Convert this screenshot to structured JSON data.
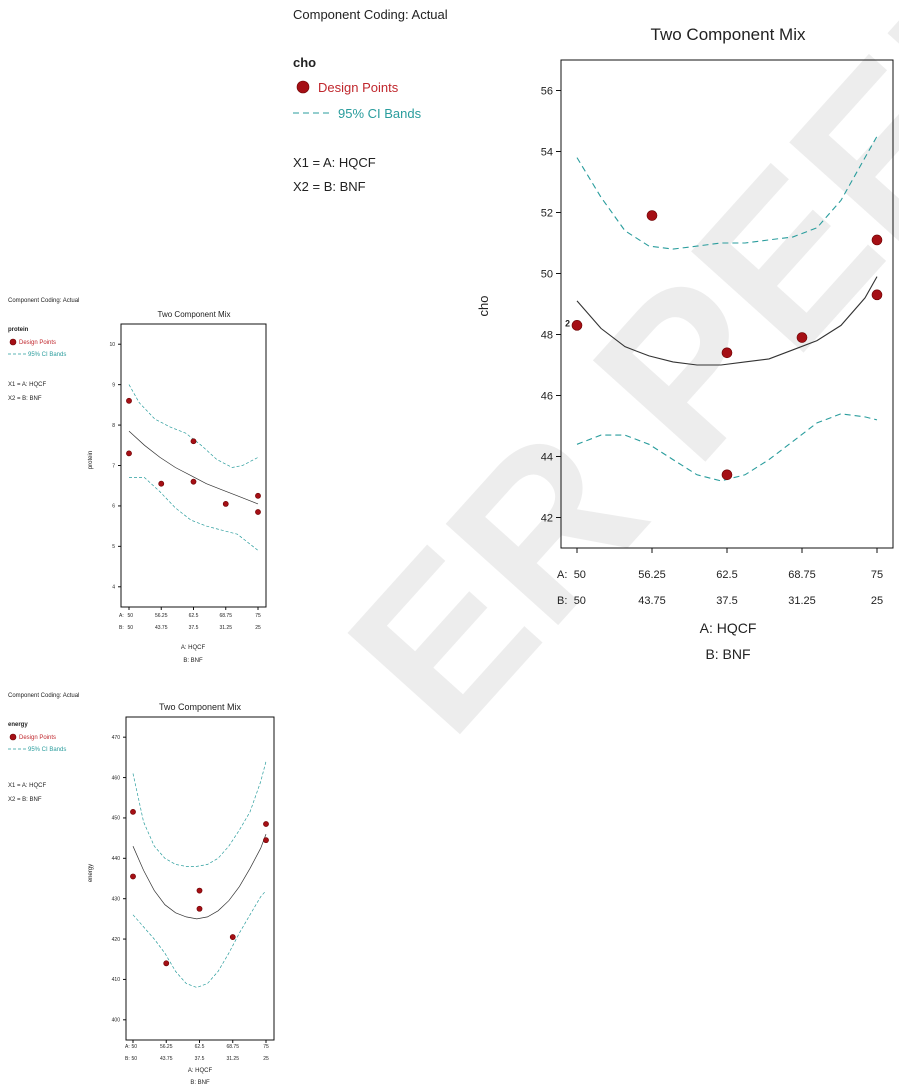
{
  "watermark": "ER PEER",
  "chart_data": [
    {
      "id": "cho",
      "type": "line",
      "title": "Two Component Mix",
      "coding_label": "Component Coding: Actual",
      "legend_title": "cho",
      "legend_points": "Design Points",
      "legend_ci": "95% CI Bands",
      "x1_label": "X1 = A: HQCF",
      "x2_label": "X2 = B: BNF",
      "ylabel": "cho",
      "xlabel_a": "A: HQCF",
      "xlabel_b": "B: BNF",
      "row_a_prefix": "A:",
      "row_b_prefix": "B:",
      "x_a_ticks": [
        "50",
        "56.25",
        "62.5",
        "68.75",
        "75"
      ],
      "x_b_ticks": [
        "50",
        "43.75",
        "37.5",
        "31.25",
        "25"
      ],
      "ylim": [
        41,
        57
      ],
      "y_ticks": [
        "42",
        "44",
        "46",
        "48",
        "50",
        "52",
        "54",
        "56"
      ],
      "points": [
        {
          "x": 50,
          "y": 48.3,
          "label": "2"
        },
        {
          "x": 56.25,
          "y": 51.9
        },
        {
          "x": 62.5,
          "y": 47.4
        },
        {
          "x": 62.5,
          "y": 43.4
        },
        {
          "x": 68.75,
          "y": 47.9
        },
        {
          "x": 75,
          "y": 51.1
        },
        {
          "x": 75,
          "y": 49.3
        }
      ],
      "fit": [
        [
          50,
          49.1
        ],
        [
          52,
          48.2
        ],
        [
          54,
          47.6
        ],
        [
          56,
          47.3
        ],
        [
          58,
          47.1
        ],
        [
          60,
          47.0
        ],
        [
          62,
          47.0
        ],
        [
          64,
          47.1
        ],
        [
          66,
          47.2
        ],
        [
          68,
          47.5
        ],
        [
          70,
          47.8
        ],
        [
          72,
          48.3
        ],
        [
          74,
          49.2
        ],
        [
          75,
          49.9
        ]
      ],
      "ci_upper": [
        [
          50,
          53.8
        ],
        [
          52,
          52.5
        ],
        [
          54,
          51.4
        ],
        [
          56,
          50.9
        ],
        [
          58,
          50.8
        ],
        [
          60,
          50.9
        ],
        [
          62,
          51.0
        ],
        [
          64,
          51.0
        ],
        [
          66,
          51.1
        ],
        [
          68,
          51.2
        ],
        [
          70,
          51.5
        ],
        [
          72,
          52.4
        ],
        [
          74,
          53.8
        ],
        [
          75,
          54.5
        ]
      ],
      "ci_lower": [
        [
          50,
          44.4
        ],
        [
          52,
          44.7
        ],
        [
          54,
          44.7
        ],
        [
          56,
          44.4
        ],
        [
          58,
          43.9
        ],
        [
          60,
          43.4
        ],
        [
          62,
          43.2
        ],
        [
          64,
          43.4
        ],
        [
          66,
          43.9
        ],
        [
          68,
          44.5
        ],
        [
          70,
          45.1
        ],
        [
          72,
          45.4
        ],
        [
          74,
          45.3
        ],
        [
          75,
          45.2
        ]
      ]
    },
    {
      "id": "protein",
      "type": "line",
      "title": "Two Component Mix",
      "coding_label": "Component Coding: Actual",
      "legend_title": "protein",
      "legend_points": "Design Points",
      "legend_ci": "95% CI Bands",
      "x1_label": "X1 = A: HQCF",
      "x2_label": "X2 = B: BNF",
      "ylabel": "protein",
      "xlabel_a": "A: HQCF",
      "xlabel_b": "B: BNF",
      "row_a_prefix": "A:",
      "row_b_prefix": "B:",
      "x_a_ticks": [
        "50",
        "56.25",
        "62.5",
        "68.75",
        "75"
      ],
      "x_b_ticks": [
        "50",
        "43.75",
        "37.5",
        "31.25",
        "25"
      ],
      "ylim": [
        3.5,
        10.5
      ],
      "y_ticks": [
        "4",
        "5",
        "6",
        "7",
        "8",
        "9",
        "10"
      ],
      "points": [
        {
          "x": 50,
          "y": 8.6
        },
        {
          "x": 50,
          "y": 7.3
        },
        {
          "x": 56.25,
          "y": 6.55
        },
        {
          "x": 62.5,
          "y": 7.6
        },
        {
          "x": 62.5,
          "y": 6.6
        },
        {
          "x": 68.75,
          "y": 6.05
        },
        {
          "x": 75,
          "y": 6.25
        },
        {
          "x": 75,
          "y": 5.85
        }
      ],
      "fit": [
        [
          50,
          7.85
        ],
        [
          53,
          7.5
        ],
        [
          56,
          7.2
        ],
        [
          59,
          6.95
        ],
        [
          62,
          6.75
        ],
        [
          65,
          6.55
        ],
        [
          68,
          6.4
        ],
        [
          71,
          6.25
        ],
        [
          75,
          6.05
        ]
      ],
      "ci_upper": [
        [
          50,
          9.0
        ],
        [
          52,
          8.55
        ],
        [
          55,
          8.15
        ],
        [
          58,
          7.95
        ],
        [
          61,
          7.8
        ],
        [
          64,
          7.5
        ],
        [
          67,
          7.15
        ],
        [
          70,
          6.95
        ],
        [
          72,
          7.0
        ],
        [
          75,
          7.2
        ]
      ],
      "ci_lower": [
        [
          50,
          6.7
        ],
        [
          53,
          6.7
        ],
        [
          56,
          6.35
        ],
        [
          59,
          5.95
        ],
        [
          62,
          5.65
        ],
        [
          65,
          5.5
        ],
        [
          68,
          5.4
        ],
        [
          71,
          5.3
        ],
        [
          73,
          5.1
        ],
        [
          75,
          4.9
        ]
      ]
    },
    {
      "id": "energy",
      "type": "line",
      "title": "Two Component Mix",
      "coding_label": "Component Coding: Actual",
      "legend_title": "energy",
      "legend_points": "Design Points",
      "legend_ci": "95% CI Bands",
      "x1_label": "X1 = A: HQCF",
      "x2_label": "X2 = B: BNF",
      "ylabel": "energy",
      "xlabel_a": "A: HQCF",
      "xlabel_b": "B: BNF",
      "row_a_prefix": "A:",
      "row_b_prefix": "B:",
      "x_a_ticks": [
        "50",
        "56.25",
        "62.5",
        "68.75",
        "75"
      ],
      "x_b_ticks": [
        "50",
        "43.75",
        "37.5",
        "31.25",
        "25"
      ],
      "ylim": [
        395,
        475
      ],
      "y_ticks": [
        "400",
        "410",
        "420",
        "430",
        "440",
        "450",
        "460",
        "470"
      ],
      "points": [
        {
          "x": 50,
          "y": 451.5
        },
        {
          "x": 50,
          "y": 435.5
        },
        {
          "x": 56.25,
          "y": 414
        },
        {
          "x": 62.5,
          "y": 432
        },
        {
          "x": 62.5,
          "y": 427.5
        },
        {
          "x": 68.75,
          "y": 420.5
        },
        {
          "x": 75,
          "y": 448.5
        },
        {
          "x": 75,
          "y": 444.5
        }
      ],
      "fit": [
        [
          50,
          443
        ],
        [
          52,
          437
        ],
        [
          54,
          432
        ],
        [
          56,
          428.5
        ],
        [
          58,
          426.5
        ],
        [
          60,
          425.5
        ],
        [
          62,
          425
        ],
        [
          64,
          425.5
        ],
        [
          66,
          427
        ],
        [
          68,
          429.5
        ],
        [
          70,
          433
        ],
        [
          72,
          437.5
        ],
        [
          74,
          442.5
        ],
        [
          75,
          446
        ]
      ],
      "ci_upper": [
        [
          50,
          461
        ],
        [
          52,
          449
        ],
        [
          54,
          443
        ],
        [
          56,
          440
        ],
        [
          58,
          438.5
        ],
        [
          60,
          438
        ],
        [
          62,
          438
        ],
        [
          64,
          438.5
        ],
        [
          66,
          440
        ],
        [
          68,
          443
        ],
        [
          70,
          447
        ],
        [
          72,
          451.5
        ],
        [
          74,
          459
        ],
        [
          75,
          464
        ]
      ],
      "ci_lower": [
        [
          50,
          426
        ],
        [
          52,
          423
        ],
        [
          54,
          420
        ],
        [
          56,
          416.5
        ],
        [
          58,
          412
        ],
        [
          60,
          409
        ],
        [
          62,
          408
        ],
        [
          64,
          409
        ],
        [
          66,
          412
        ],
        [
          68,
          416.5
        ],
        [
          70,
          421.5
        ],
        [
          72,
          426
        ],
        [
          74,
          430.5
        ],
        [
          75,
          432
        ]
      ]
    }
  ]
}
